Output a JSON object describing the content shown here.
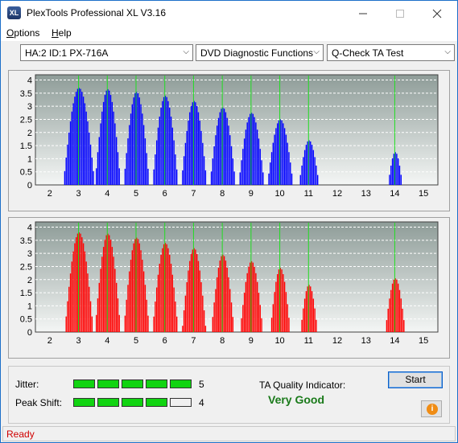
{
  "window": {
    "title": "PlexTools Professional XL V3.16",
    "icon_text": "XL",
    "controls": [
      "minimize-icon",
      "maximize-icon",
      "close-icon"
    ]
  },
  "menu": [
    {
      "label": "Options",
      "accel": "O",
      "rest": "ptions"
    },
    {
      "label": "Help",
      "accel": "H",
      "rest": "elp"
    }
  ],
  "toolbar": {
    "drive": "HA:2 ID:1  PX-716A",
    "function": "DVD Diagnostic Functions",
    "test": "Q-Check TA Test"
  },
  "chart_data": [
    {
      "type": "bar",
      "name": "top-chart",
      "color": "#0000ff",
      "x_ticks": [
        "2",
        "3",
        "4",
        "5",
        "6",
        "7",
        "8",
        "9",
        "10",
        "11",
        "12",
        "13",
        "14",
        "15"
      ],
      "y_ticks": [
        "0",
        "0.5",
        "1",
        "1.5",
        "2",
        "2.5",
        "3",
        "3.5",
        "4"
      ],
      "xlim": [
        1.5,
        15.5
      ],
      "ylim": [
        0,
        4.2
      ],
      "grid": true,
      "marker_lines_at": [
        3,
        4,
        5,
        6,
        7,
        8,
        9,
        10,
        11,
        14
      ],
      "peaks": [
        {
          "center": 3.0,
          "height": 3.7,
          "half_width": 0.55
        },
        {
          "center": 4.0,
          "height": 3.65,
          "half_width": 0.45
        },
        {
          "center": 5.0,
          "height": 3.55,
          "half_width": 0.45
        },
        {
          "center": 6.0,
          "height": 3.4,
          "half_width": 0.45
        },
        {
          "center": 7.0,
          "height": 3.2,
          "half_width": 0.45
        },
        {
          "center": 8.0,
          "height": 2.95,
          "half_width": 0.45
        },
        {
          "center": 9.0,
          "height": 2.75,
          "half_width": 0.45
        },
        {
          "center": 10.0,
          "height": 2.5,
          "half_width": 0.45
        },
        {
          "center": 11.0,
          "height": 1.7,
          "half_width": 0.35
        },
        {
          "center": 14.0,
          "height": 1.25,
          "half_width": 0.25
        }
      ]
    },
    {
      "type": "bar",
      "name": "bottom-chart",
      "color": "#ff0000",
      "x_ticks": [
        "2",
        "3",
        "4",
        "5",
        "6",
        "7",
        "8",
        "9",
        "10",
        "11",
        "12",
        "13",
        "14",
        "15"
      ],
      "y_ticks": [
        "0",
        "0.5",
        "1",
        "1.5",
        "2",
        "2.5",
        "3",
        "3.5",
        "4"
      ],
      "xlim": [
        1.5,
        15.5
      ],
      "ylim": [
        0,
        4.2
      ],
      "grid": true,
      "marker_lines_at": [
        3,
        4,
        5,
        6,
        7,
        8,
        9,
        10,
        11,
        14
      ],
      "peaks": [
        {
          "center": 3.0,
          "height": 3.8,
          "half_width": 0.5
        },
        {
          "center": 4.0,
          "height": 3.75,
          "half_width": 0.45
        },
        {
          "center": 5.0,
          "height": 3.6,
          "half_width": 0.45
        },
        {
          "center": 6.0,
          "height": 3.4,
          "half_width": 0.45
        },
        {
          "center": 7.0,
          "height": 3.2,
          "half_width": 0.42
        },
        {
          "center": 8.0,
          "height": 2.95,
          "half_width": 0.4
        },
        {
          "center": 9.0,
          "height": 2.7,
          "half_width": 0.4
        },
        {
          "center": 10.0,
          "height": 2.45,
          "half_width": 0.35
        },
        {
          "center": 11.0,
          "height": 1.8,
          "half_width": 0.3
        },
        {
          "center": 14.0,
          "height": 2.05,
          "half_width": 0.35
        }
      ]
    }
  ],
  "results": {
    "jitter_label": "Jitter:",
    "jitter_score": "5",
    "jitter_level": 5,
    "peak_label": "Peak Shift:",
    "peak_score": "4",
    "peak_level": 4,
    "segments_total": 5,
    "quality_label": "TA Quality Indicator:",
    "quality_value": "Very Good",
    "start_label": "Start",
    "info_icon_text": "i"
  },
  "status": {
    "text": "Ready"
  }
}
